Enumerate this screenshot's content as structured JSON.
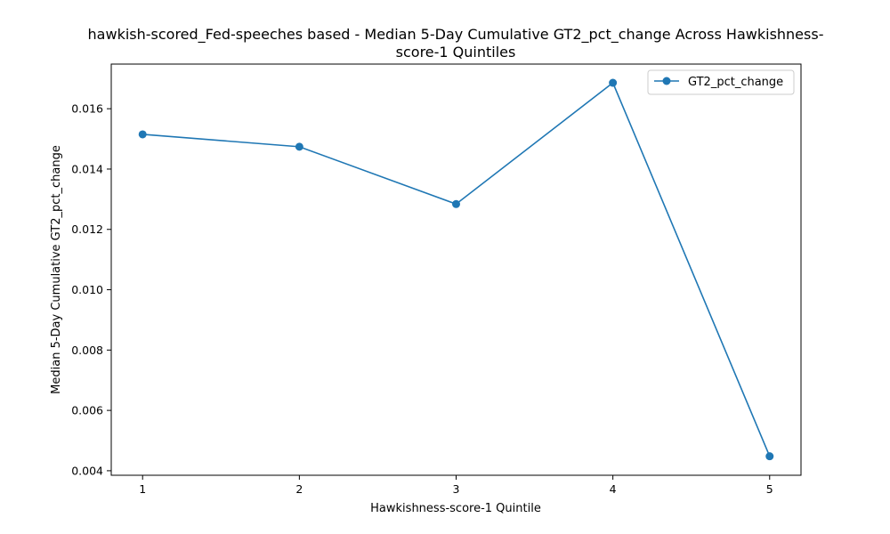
{
  "chart_data": {
    "type": "line",
    "title_lines": [
      "hawkish-scored_Fed-speeches based - Median 5-Day Cumulative GT2_pct_change Across Hawkishness-",
      "score-1 Quintiles"
    ],
    "xlabel": "Hawkishness-score-1 Quintile",
    "ylabel": "Median 5-Day Cumulative GT2_pct_change",
    "x": [
      1,
      2,
      3,
      4,
      5
    ],
    "x_ticks": [
      "1",
      "2",
      "3",
      "4",
      "5"
    ],
    "xlim": [
      0.8,
      5.2
    ],
    "y_ticks": [
      "0.004",
      "0.006",
      "0.008",
      "0.010",
      "0.012",
      "0.014",
      "0.016"
    ],
    "ylim": [
      0.00385,
      0.01748
    ],
    "series": [
      {
        "name": "GT2_pct_change",
        "values": [
          0.01515,
          0.01474,
          0.01284,
          0.01686,
          0.00448
        ],
        "color": "#1f77b4"
      }
    ],
    "legend": "top-right",
    "grid": false
  }
}
